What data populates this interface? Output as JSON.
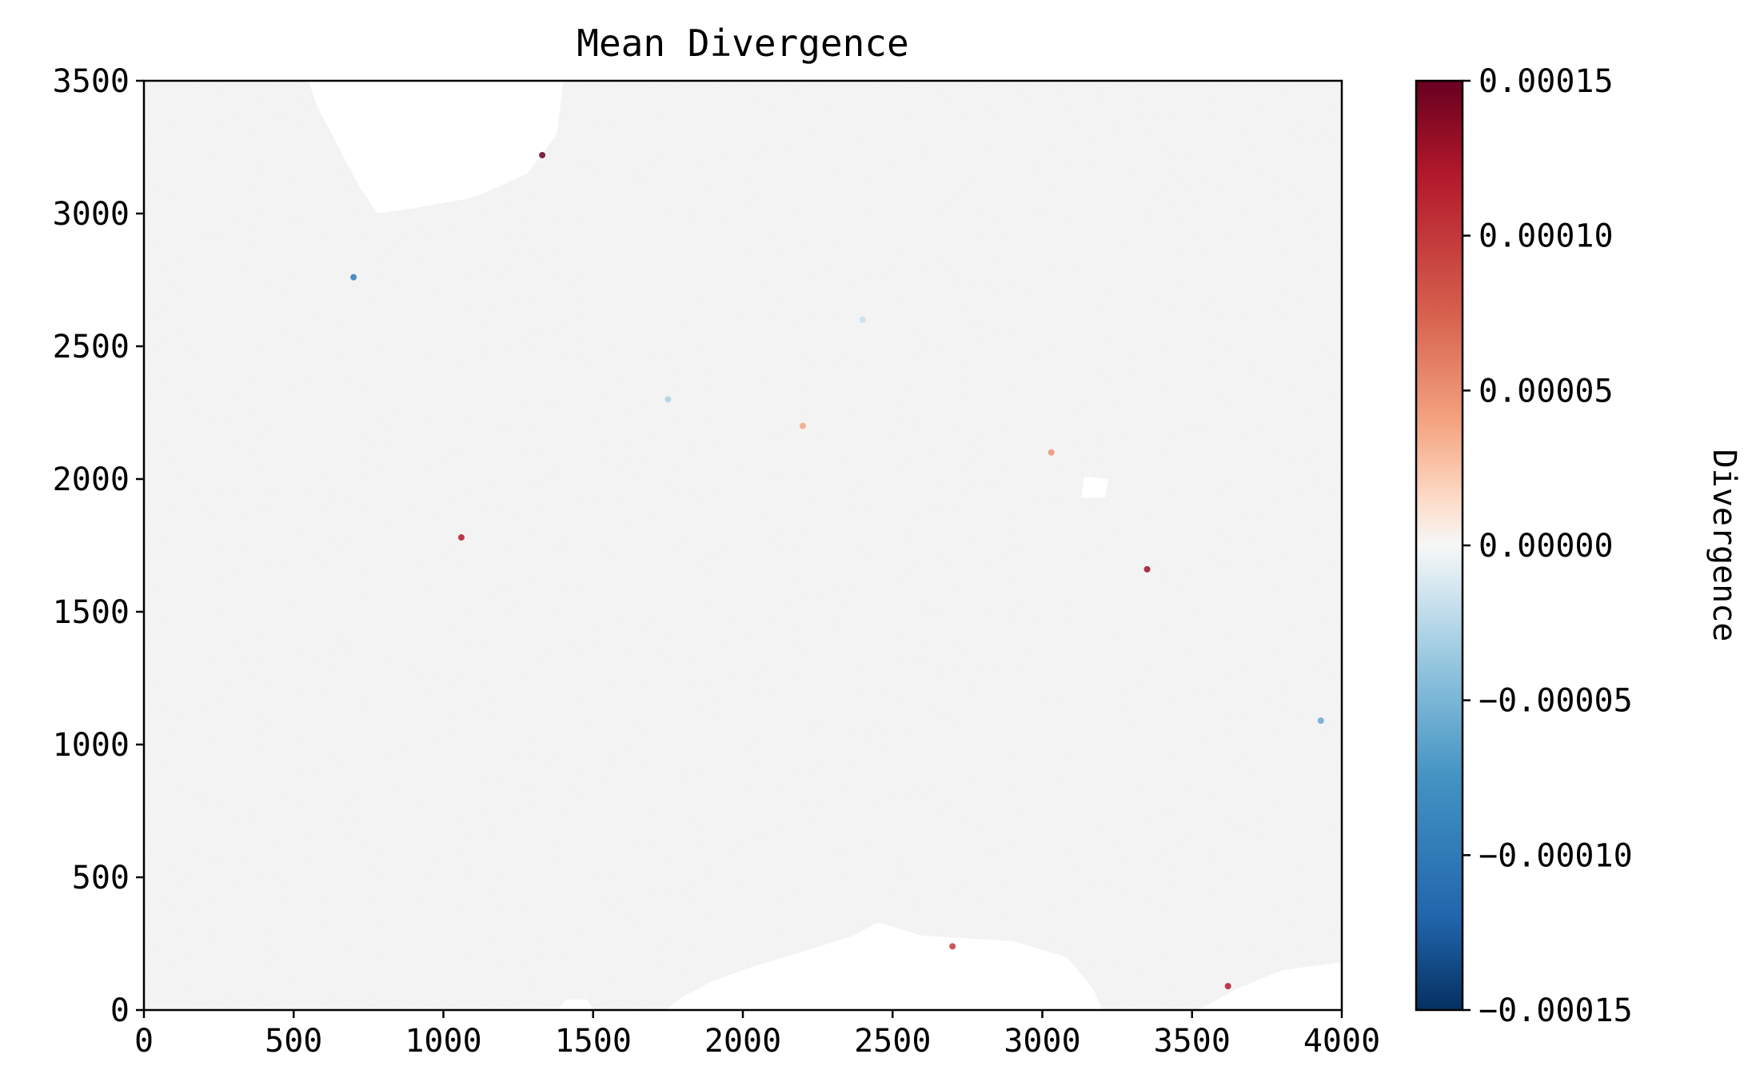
{
  "chart_data": {
    "type": "heatmap",
    "title": "Mean Divergence",
    "xlabel": "",
    "ylabel": "",
    "xlim": [
      0,
      4000
    ],
    "ylim": [
      0,
      3500
    ],
    "x_ticks": [
      "0",
      "500",
      "1000",
      "1500",
      "2000",
      "2500",
      "3000",
      "3500",
      "4000"
    ],
    "y_ticks": [
      "0",
      "500",
      "1000",
      "1500",
      "2000",
      "2500",
      "3000",
      "3500"
    ],
    "colorbar": {
      "label": "Divergence",
      "colormap": "RdBu_r",
      "vmin": -0.00015,
      "vmax": 0.00015,
      "ticks": [
        "0.00015",
        "0.00010",
        "0.00005",
        "0.00000",
        "−0.00005",
        "−0.00010",
        "−0.00015"
      ],
      "tick_values": [
        0.00015,
        0.0001,
        5e-05,
        0,
        -5e-05,
        -0.0001,
        -0.00015
      ]
    },
    "field": {
      "dominant_value": 0.0,
      "background_color": "#f6f6f6",
      "masked_color": "#ffffff",
      "masked_regions": [
        {
          "name": "top-landmass",
          "outline": [
            [
              550,
              3500
            ],
            [
              1400,
              3500
            ],
            [
              1380,
              3300
            ],
            [
              1280,
              3150
            ],
            [
              1100,
              3060
            ],
            [
              900,
              3020
            ],
            [
              780,
              3000
            ],
            [
              720,
              3100
            ],
            [
              650,
              3250
            ],
            [
              580,
              3400
            ]
          ]
        },
        {
          "name": "bottom-landmass",
          "outline": [
            [
              1740,
              0
            ],
            [
              3200,
              0
            ],
            [
              3170,
              80
            ],
            [
              3080,
              200
            ],
            [
              2900,
              260
            ],
            [
              2600,
              280
            ],
            [
              2450,
              330
            ],
            [
              2370,
              280
            ],
            [
              2200,
              220
            ],
            [
              2050,
              170
            ],
            [
              1900,
              110
            ],
            [
              1800,
              50
            ]
          ]
        },
        {
          "name": "bottom-left-island",
          "outline": [
            [
              1380,
              0
            ],
            [
              1500,
              0
            ],
            [
              1480,
              40
            ],
            [
              1410,
              40
            ]
          ]
        },
        {
          "name": "bottom-right-landmass",
          "outline": [
            [
              3520,
              0
            ],
            [
              4000,
              0
            ],
            [
              4000,
              180
            ],
            [
              3800,
              150
            ],
            [
              3650,
              80
            ]
          ]
        },
        {
          "name": "small-island",
          "outline": [
            [
              3130,
              1930
            ],
            [
              3210,
              1930
            ],
            [
              3220,
              2000
            ],
            [
              3140,
              2010
            ]
          ]
        }
      ],
      "hotspots": [
        {
          "x": 1330,
          "y": 3220,
          "value": 0.00015
        },
        {
          "x": 700,
          "y": 2760,
          "value": -0.0001
        },
        {
          "x": 1060,
          "y": 1780,
          "value": 0.00012
        },
        {
          "x": 3350,
          "y": 1660,
          "value": 0.00013
        },
        {
          "x": 2200,
          "y": 2200,
          "value": 4e-05
        },
        {
          "x": 3030,
          "y": 2100,
          "value": 5e-05
        },
        {
          "x": 3930,
          "y": 1090,
          "value": -6e-05
        },
        {
          "x": 2700,
          "y": 240,
          "value": 0.0001
        },
        {
          "x": 3620,
          "y": 90,
          "value": 0.00012
        },
        {
          "x": 1750,
          "y": 2300,
          "value": -3e-05
        },
        {
          "x": 2400,
          "y": 2600,
          "value": -2e-05
        }
      ]
    }
  }
}
